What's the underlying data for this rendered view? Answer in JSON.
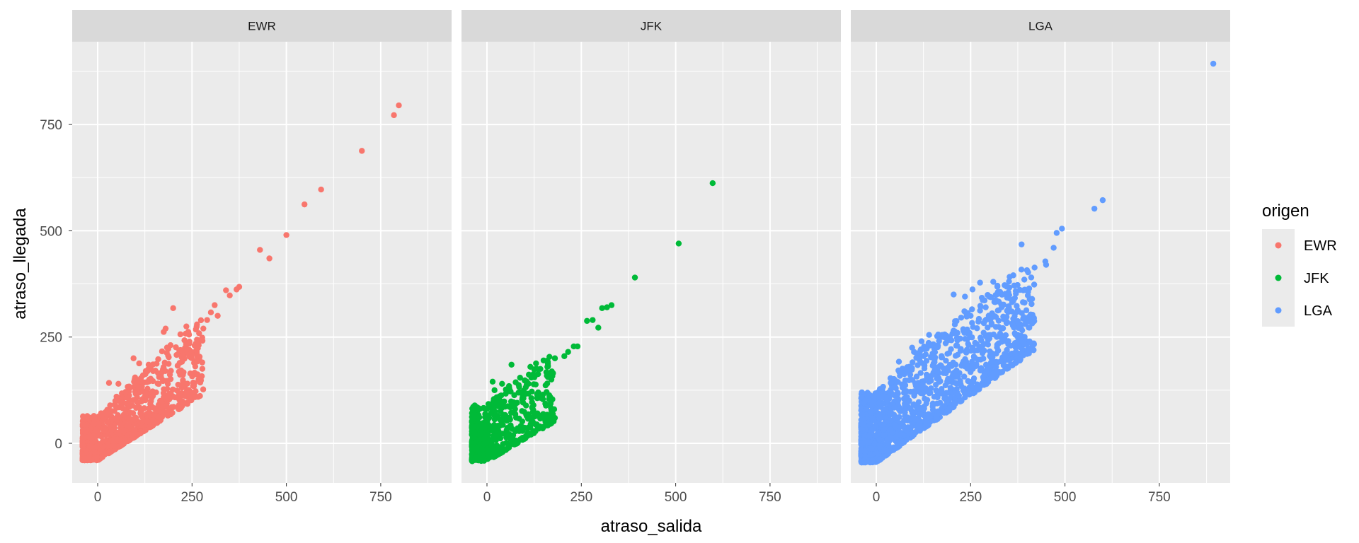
{
  "chart_data": {
    "type": "scatter",
    "xlabel": "atraso_salida",
    "ylabel": "atraso_llegada",
    "xlim": [
      -40,
      900
    ],
    "ylim": [
      -85,
      915
    ],
    "x_ticks": [
      0,
      250,
      500,
      750
    ],
    "x_tick_labels": [
      "0",
      "250",
      "500",
      "750"
    ],
    "y_ticks": [
      0,
      250,
      500,
      750
    ],
    "y_tick_labels": [
      "0",
      "250",
      "500",
      "750"
    ],
    "grid": true,
    "legend": {
      "title": "origen",
      "position": "right"
    },
    "colors": {
      "EWR": "#F8766D",
      "JFK": "#00BA38",
      "LGA": "#619CFF"
    },
    "panels": [
      {
        "name": "EWR",
        "outliers": [
          [
            798,
            795
          ],
          [
            785,
            772
          ],
          [
            700,
            688
          ],
          [
            592,
            597
          ],
          [
            548,
            562
          ],
          [
            500,
            490
          ],
          [
            430,
            455
          ],
          [
            455,
            435
          ],
          [
            375,
            368
          ],
          [
            368,
            362
          ],
          [
            340,
            360
          ],
          [
            350,
            348
          ],
          [
            310,
            325
          ],
          [
            300,
            308
          ],
          [
            318,
            300
          ],
          [
            290,
            290
          ],
          [
            200,
            318
          ],
          [
            180,
            270
          ],
          [
            175,
            262
          ],
          [
            235,
            275
          ],
          [
            240,
            262
          ],
          [
            95,
            200
          ],
          [
            110,
            188
          ],
          [
            30,
            142
          ],
          [
            280,
            270
          ],
          [
            120,
            160
          ],
          [
            55,
            140
          ]
        ],
        "cloud": {
          "x_max": 280,
          "x_spread": 0.55,
          "low_min": -40,
          "low_slope": 0.62,
          "high_intercept": 65,
          "high_slope": 0.95,
          "high_curve": 0.3,
          "n": 950
        }
      },
      {
        "name": "JFK",
        "outliers": [
          [
            598,
            612
          ],
          [
            508,
            470
          ],
          [
            392,
            390
          ],
          [
            330,
            325
          ],
          [
            318,
            320
          ],
          [
            305,
            318
          ],
          [
            280,
            290
          ],
          [
            265,
            288
          ],
          [
            295,
            272
          ],
          [
            240,
            228
          ],
          [
            230,
            228
          ],
          [
            215,
            215
          ],
          [
            205,
            205
          ],
          [
            180,
            200
          ],
          [
            150,
            195
          ],
          [
            130,
            188
          ],
          [
            115,
            180
          ],
          [
            65,
            185
          ],
          [
            15,
            145
          ],
          [
            40,
            140
          ],
          [
            20,
            125
          ],
          [
            175,
            165
          ],
          [
            160,
            180
          ]
        ],
        "cloud": {
          "x_max": 180,
          "x_spread": 0.5,
          "low_min": -42,
          "low_slope": 0.58,
          "high_intercept": 90,
          "high_slope": 0.8,
          "high_curve": 0.4,
          "n": 550
        }
      },
      {
        "name": "LGA",
        "outliers": [
          [
            893,
            893
          ],
          [
            600,
            572
          ],
          [
            578,
            552
          ],
          [
            492,
            505
          ],
          [
            478,
            495
          ],
          [
            470,
            460
          ],
          [
            448,
            428
          ],
          [
            385,
            468
          ],
          [
            275,
            378
          ],
          [
            310,
            380
          ],
          [
            340,
            372
          ],
          [
            255,
            362
          ],
          [
            290,
            320
          ],
          [
            350,
            355
          ],
          [
            235,
            345
          ],
          [
            205,
            350
          ],
          [
            275,
            312
          ],
          [
            140,
            255
          ],
          [
            175,
            255
          ],
          [
            120,
            240
          ],
          [
            95,
            225
          ],
          [
            100,
            215
          ],
          [
            60,
            192
          ],
          [
            250,
            300
          ],
          [
            450,
            420
          ]
        ],
        "cloud": {
          "x_max": 420,
          "x_spread": 0.6,
          "low_min": -45,
          "low_slope": 0.7,
          "high_intercept": 120,
          "high_slope": 0.9,
          "high_curve": 0.5,
          "n": 1400
        }
      }
    ]
  }
}
